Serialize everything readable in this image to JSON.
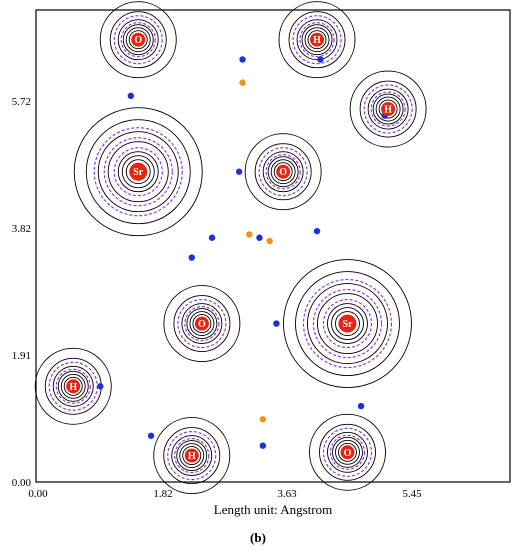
{
  "figure": {
    "axis_unit_caption": "Length unit: Angstrom",
    "panel_label": "(b)",
    "x_ticks": [
      "0.00",
      "1.82",
      "3.63",
      "5.45"
    ],
    "y_ticks": [
      "0.00",
      "1.91",
      "3.82",
      "5.72"
    ],
    "atoms": [
      {
        "label": "O",
        "x": 1.51,
        "y": 6.7
      },
      {
        "label": "H",
        "x": 4.15,
        "y": 6.7
      },
      {
        "label": "H",
        "x": 5.2,
        "y": 5.65
      },
      {
        "label": "O",
        "x": 3.65,
        "y": 4.7
      },
      {
        "label": "Sr",
        "x": 1.51,
        "y": 4.7
      },
      {
        "label": "O",
        "x": 2.45,
        "y": 2.4
      },
      {
        "label": "Sr",
        "x": 4.6,
        "y": 2.4
      },
      {
        "label": "H",
        "x": 0.55,
        "y": 1.45
      },
      {
        "label": "H",
        "x": 2.3,
        "y": 0.4
      },
      {
        "label": "O",
        "x": 4.6,
        "y": 0.45
      }
    ],
    "blue_points": [
      [
        3.05,
        6.4
      ],
      [
        1.4,
        5.85
      ],
      [
        3.0,
        4.7
      ],
      [
        4.15,
        3.8
      ],
      [
        2.6,
        3.7
      ],
      [
        2.3,
        3.4
      ],
      [
        3.55,
        2.4
      ],
      [
        0.95,
        1.45
      ],
      [
        1.7,
        0.7
      ],
      [
        3.35,
        0.55
      ],
      [
        4.8,
        1.15
      ],
      [
        5.15,
        5.55
      ],
      [
        4.2,
        6.4
      ],
      [
        3.3,
        3.7
      ]
    ],
    "orange_points": [
      [
        3.05,
        6.05
      ],
      [
        3.15,
        3.75
      ],
      [
        3.45,
        3.65
      ],
      [
        3.35,
        0.95
      ]
    ],
    "colors": {
      "contour": "#000000",
      "negative_contour": "#8a2be2",
      "atom_marker": "#e8230f",
      "bond_critical_point": "#1f2fd6",
      "ring_critical_point": "#f29019"
    }
  }
}
